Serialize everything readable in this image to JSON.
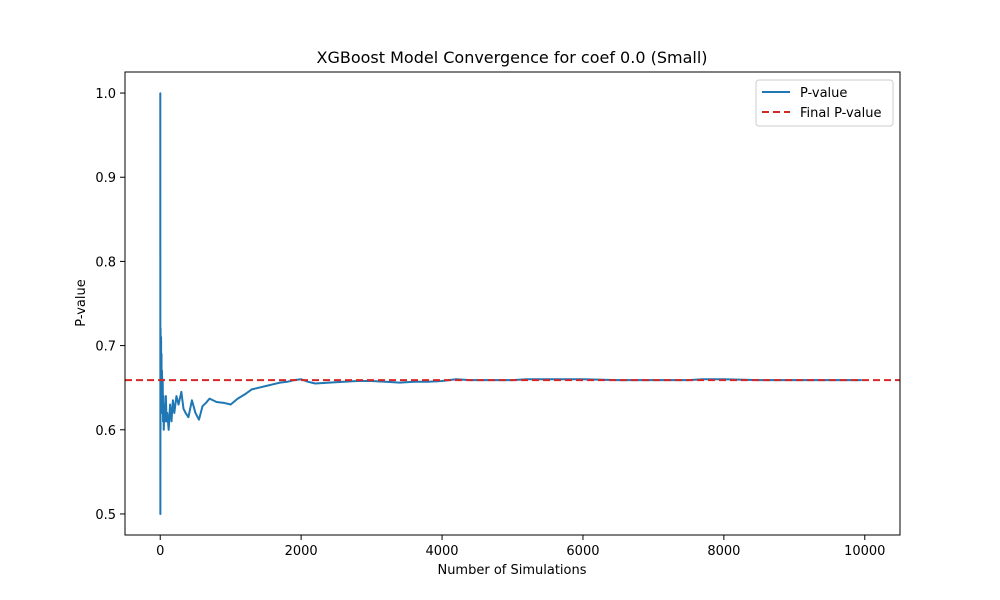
{
  "chart_data": {
    "type": "line",
    "title": "XGBoost Model Convergence for coef 0.0 (Small)",
    "xlabel": "Number of Simulations",
    "ylabel": "P-value",
    "xlim": [
      -500,
      10500
    ],
    "ylim": [
      0.475,
      1.025
    ],
    "xticks": [
      0,
      2000,
      4000,
      6000,
      8000,
      10000
    ],
    "xtick_labels": [
      "0",
      "2000",
      "4000",
      "6000",
      "8000",
      "10000"
    ],
    "yticks": [
      0.5,
      0.6,
      0.7,
      0.8,
      0.9,
      1.0
    ],
    "ytick_labels": [
      "0.5",
      "0.6",
      "0.7",
      "0.8",
      "0.9",
      "1.0"
    ],
    "grid": false,
    "legend_position": "top-right",
    "series": [
      {
        "name": "P-value",
        "color": "#1f77b4",
        "style": "solid",
        "x": [
          1,
          2,
          3,
          4,
          5,
          6,
          8,
          10,
          12,
          15,
          18,
          20,
          25,
          30,
          35,
          40,
          45,
          50,
          60,
          70,
          80,
          90,
          100,
          120,
          140,
          160,
          180,
          200,
          230,
          260,
          300,
          330,
          360,
          400,
          450,
          500,
          550,
          600,
          650,
          700,
          800,
          900,
          1000,
          1100,
          1200,
          1300,
          1400,
          1500,
          1600,
          1700,
          1800,
          1900,
          2000,
          2100,
          2200,
          2400,
          2600,
          2800,
          3000,
          3200,
          3400,
          3600,
          3800,
          4000,
          4200,
          4400,
          4600,
          4800,
          5000,
          5200,
          5500,
          6000,
          6500,
          7000,
          7500,
          7700,
          8000,
          8500,
          9000,
          9500,
          9950
        ],
        "y": [
          1.0,
          0.5,
          0.67,
          0.6,
          0.72,
          0.64,
          0.7,
          0.66,
          0.71,
          0.65,
          0.69,
          0.64,
          0.67,
          0.62,
          0.66,
          0.61,
          0.64,
          0.6,
          0.63,
          0.61,
          0.64,
          0.61,
          0.62,
          0.6,
          0.63,
          0.61,
          0.635,
          0.62,
          0.64,
          0.63,
          0.645,
          0.625,
          0.62,
          0.615,
          0.635,
          0.62,
          0.612,
          0.628,
          0.632,
          0.637,
          0.633,
          0.632,
          0.63,
          0.637,
          0.642,
          0.648,
          0.65,
          0.652,
          0.654,
          0.656,
          0.657,
          0.659,
          0.66,
          0.657,
          0.655,
          0.656,
          0.657,
          0.658,
          0.658,
          0.657,
          0.656,
          0.657,
          0.657,
          0.658,
          0.66,
          0.659,
          0.659,
          0.659,
          0.659,
          0.66,
          0.66,
          0.66,
          0.659,
          0.659,
          0.659,
          0.66,
          0.66,
          0.659,
          0.659,
          0.659,
          0.659
        ]
      },
      {
        "name": "Final P-value",
        "color": "#d62728",
        "style": "dashed",
        "y": 0.659
      }
    ]
  }
}
